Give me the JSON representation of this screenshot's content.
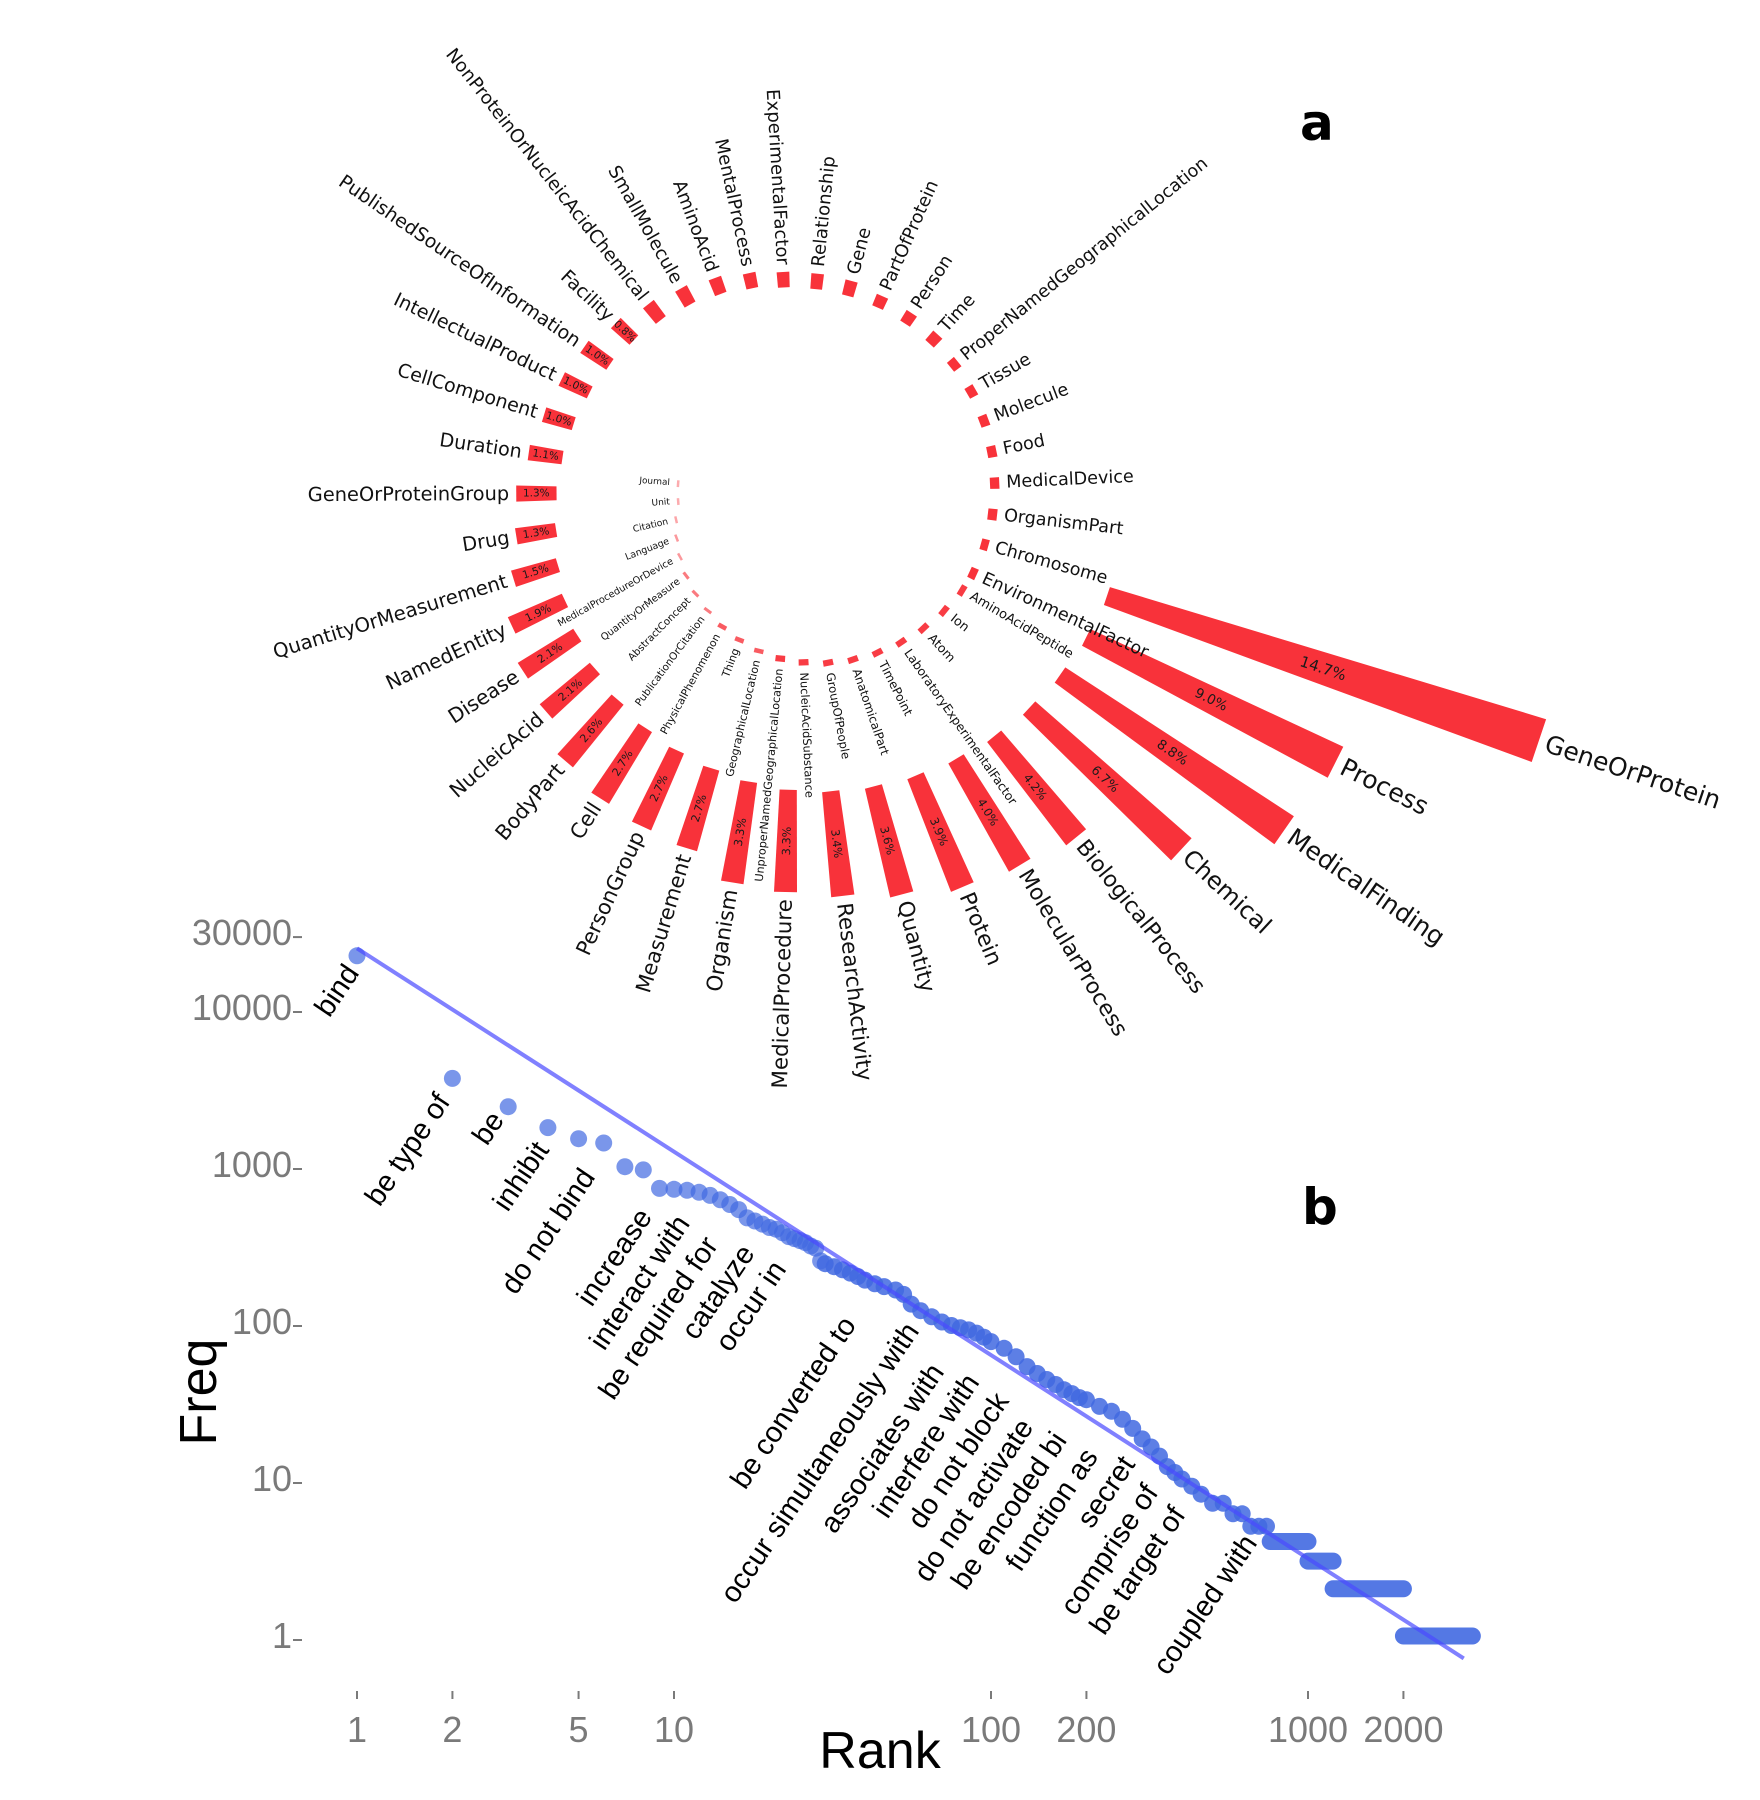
{
  "panel_labels": {
    "a": "a",
    "b": "b"
  },
  "colors": {
    "bar": "#f8323a",
    "points": "#4169e1",
    "fit_line": "#4a4aff",
    "tick_text": "#7a7a7a"
  },
  "chart_data": [
    {
      "type": "bar",
      "layout": "circular-spiral",
      "unit": "%",
      "categories": [
        {
          "name": "GeneOrProtein",
          "value": 14.7,
          "label": "14.7%"
        },
        {
          "name": "Process",
          "value": 9.0,
          "label": "9.0%"
        },
        {
          "name": "MedicalFinding",
          "value": 8.8,
          "label": "8.8%"
        },
        {
          "name": "Chemical",
          "value": 6.7,
          "label": "6.7%"
        },
        {
          "name": "BiologicalProcess",
          "value": 4.2,
          "label": "4.2%"
        },
        {
          "name": "MolecularProcess",
          "value": 4.0,
          "label": "4.0%"
        },
        {
          "name": "Protein",
          "value": 3.9,
          "label": "3.9%"
        },
        {
          "name": "Quantity",
          "value": 3.6,
          "label": "3.6%"
        },
        {
          "name": "ResearchActivity",
          "value": 3.4,
          "label": "3.4%"
        },
        {
          "name": "MedicalProcedure",
          "value": 3.3,
          "label": "3.3%"
        },
        {
          "name": "Organism",
          "value": 3.3,
          "label": "3.3%"
        },
        {
          "name": "Measurement",
          "value": 2.7,
          "label": "2.7%"
        },
        {
          "name": "PersonGroup",
          "value": 2.7,
          "label": "2.7%"
        },
        {
          "name": "Cell",
          "value": 2.7,
          "label": "2.7%"
        },
        {
          "name": "BodyPart",
          "value": 2.6,
          "label": "2.6%"
        },
        {
          "name": "NucleicAcid",
          "value": 2.1,
          "label": "2.1%"
        },
        {
          "name": "Disease",
          "value": 2.1,
          "label": "2.1%"
        },
        {
          "name": "NamedEntity",
          "value": 1.9,
          "label": "1.9%"
        },
        {
          "name": "QuantityOrMeasurement",
          "value": 1.5,
          "label": "1.5%"
        },
        {
          "name": "Drug",
          "value": 1.3,
          "label": "1.3%"
        },
        {
          "name": "GeneOrProteinGroup",
          "value": 1.3,
          "label": "1.3%"
        },
        {
          "name": "Duration",
          "value": 1.1,
          "label": "1.1%"
        },
        {
          "name": "CellComponent",
          "value": 1.0,
          "label": "1.0%"
        },
        {
          "name": "IntellectualProduct",
          "value": 1.0,
          "label": "1.0%"
        },
        {
          "name": "PublishedSourceOfInformation",
          "value": 1.0,
          "label": "1.0%"
        },
        {
          "name": "Facility",
          "value": 0.8,
          "label": "0.8%"
        },
        {
          "name": "NonProteinOrNucleicAcidChemical",
          "value": 0.65
        },
        {
          "name": "SmallMolecule",
          "value": 0.6
        },
        {
          "name": "AminoAcid",
          "value": 0.55
        },
        {
          "name": "MentalProcess",
          "value": 0.5
        },
        {
          "name": "ExperimentalFactor",
          "value": 0.5
        },
        {
          "name": "Relationship",
          "value": 0.5
        },
        {
          "name": "Gene",
          "value": 0.5
        },
        {
          "name": "PartOfProtein",
          "value": 0.4
        },
        {
          "name": "Person",
          "value": 0.4
        },
        {
          "name": "Time",
          "value": 0.4
        },
        {
          "name": "ProperNamedGeographicalLocation",
          "value": 0.3
        },
        {
          "name": "Tissue",
          "value": 0.3
        },
        {
          "name": "Molecule",
          "value": 0.3
        },
        {
          "name": "Food",
          "value": 0.3
        },
        {
          "name": "MedicalDevice",
          "value": 0.3
        },
        {
          "name": "OrganismPart",
          "value": 0.3
        },
        {
          "name": "Chromosome",
          "value": 0.25
        },
        {
          "name": "EnvironmentalFactor",
          "value": 0.25
        },
        {
          "name": "AminoAcidPeptide",
          "value": 0.2
        },
        {
          "name": "Ion",
          "value": 0.2
        },
        {
          "name": "Atom",
          "value": 0.2
        },
        {
          "name": "LaboratoryExperimentalFactor",
          "value": 0.2
        },
        {
          "name": "TimePoint",
          "value": 0.2
        },
        {
          "name": "AnatomicalPart",
          "value": 0.2
        },
        {
          "name": "GroupOfPeople",
          "value": 0.2
        },
        {
          "name": "NucleicAcidSubstance",
          "value": 0.2
        },
        {
          "name": "UnproperNamedGeographicalLocation",
          "value": 0.2
        },
        {
          "name": "GeographicalLocation",
          "value": 0.15
        },
        {
          "name": "Thing",
          "value": 0.15
        },
        {
          "name": "PhysicalPhenomenon",
          "value": 0.15
        },
        {
          "name": "PublicationOrCitation",
          "value": 0.1
        },
        {
          "name": "AbstractConcept",
          "value": 0.1
        },
        {
          "name": "QuantityOrMeasure",
          "value": 0.1
        },
        {
          "name": "MedicalProcedureOrDevice",
          "value": 0.05
        },
        {
          "name": "Language",
          "value": 0.05
        },
        {
          "name": "Citation",
          "value": 0.03
        },
        {
          "name": "Unit",
          "value": 0.02
        },
        {
          "name": "Journal",
          "value": 0.02
        }
      ]
    },
    {
      "type": "scatter",
      "xlabel": "Rank",
      "ylabel": "Freq",
      "x_scale": "log",
      "y_scale": "log",
      "xlim": [
        1,
        3300
      ],
      "ylim": [
        1,
        30000
      ],
      "x_ticks": [
        "1",
        "2",
        "5",
        "10",
        "100",
        "200",
        "1000",
        "2000"
      ],
      "x_tick_values": [
        1,
        2,
        5,
        10,
        100,
        200,
        1000,
        2000
      ],
      "y_ticks": [
        "30000",
        "10000",
        "1000",
        "100",
        "10",
        "1"
      ],
      "y_tick_values": [
        30000,
        10000,
        1000,
        100,
        10,
        1
      ],
      "grid": false,
      "points": [
        [
          1,
          21500
        ],
        [
          2,
          3560
        ],
        [
          3,
          2350
        ],
        [
          4,
          1730
        ],
        [
          5,
          1470
        ],
        [
          6,
          1380
        ],
        [
          7,
          975
        ],
        [
          8,
          930
        ],
        [
          9,
          710
        ],
        [
          10,
          700
        ],
        [
          11,
          690
        ],
        [
          12,
          670
        ],
        [
          13,
          640
        ],
        [
          14,
          600
        ],
        [
          15,
          560
        ],
        [
          16,
          520
        ],
        [
          17,
          460
        ],
        [
          18,
          440
        ],
        [
          19,
          420
        ],
        [
          20,
          400
        ],
        [
          21,
          390
        ],
        [
          22,
          370
        ],
        [
          23,
          350
        ],
        [
          24,
          340
        ],
        [
          25,
          330
        ],
        [
          26,
          320
        ],
        [
          27,
          305
        ],
        [
          28,
          295
        ],
        [
          29,
          245
        ],
        [
          30,
          235
        ],
        [
          32,
          225
        ],
        [
          34,
          215
        ],
        [
          36,
          205
        ],
        [
          38,
          195
        ],
        [
          40,
          185
        ],
        [
          43,
          175
        ],
        [
          46,
          168
        ],
        [
          50,
          160
        ],
        [
          53,
          150
        ],
        [
          56,
          130
        ],
        [
          60,
          118
        ],
        [
          65,
          108
        ],
        [
          70,
          100
        ],
        [
          75,
          95
        ],
        [
          80,
          92
        ],
        [
          85,
          89
        ],
        [
          90,
          85
        ],
        [
          95,
          80
        ],
        [
          100,
          75
        ],
        [
          110,
          68
        ],
        [
          120,
          60
        ],
        [
          130,
          52
        ],
        [
          140,
          47
        ],
        [
          150,
          43
        ],
        [
          160,
          40
        ],
        [
          170,
          37
        ],
        [
          180,
          35
        ],
        [
          190,
          33
        ],
        [
          200,
          32
        ],
        [
          220,
          29
        ],
        [
          240,
          27
        ],
        [
          260,
          24
        ],
        [
          280,
          21
        ],
        [
          300,
          18
        ],
        [
          320,
          16
        ],
        [
          340,
          14
        ],
        [
          360,
          12
        ],
        [
          380,
          11
        ],
        [
          400,
          10
        ],
        [
          430,
          9
        ],
        [
          460,
          8
        ],
        [
          500,
          7
        ],
        [
          540,
          7
        ],
        [
          580,
          6
        ],
        [
          620,
          6
        ],
        [
          660,
          5
        ],
        [
          700,
          5
        ],
        [
          740,
          5
        ]
      ],
      "plateaus": [
        {
          "freq": 4,
          "rank_from": 760,
          "rank_to": 1000
        },
        {
          "freq": 3,
          "rank_from": 1000,
          "rank_to": 1200
        },
        {
          "freq": 2,
          "rank_from": 1200,
          "rank_to": 2000
        },
        {
          "freq": 1,
          "rank_from": 2000,
          "rank_to": 3300
        }
      ],
      "fit_line": {
        "from": [
          1,
          24000
        ],
        "to": [
          3100,
          0.72
        ]
      },
      "point_labels": [
        {
          "text": "bind",
          "rank": 1
        },
        {
          "text": "be type of",
          "rank": 2
        },
        {
          "text": "be",
          "rank": 3
        },
        {
          "text": "inhibit",
          "rank": 4
        },
        {
          "text": "do not bind",
          "rank": 5
        },
        {
          "text": "increase",
          "rank": 9
        },
        {
          "text": "interact with",
          "rank": 11
        },
        {
          "text": "be required for",
          "rank": 14
        },
        {
          "text": "catalyze",
          "rank": 17
        },
        {
          "text": "occur in",
          "rank": 21
        },
        {
          "text": "be converted to",
          "rank": 36
        },
        {
          "text": "occur simultaneously with",
          "rank": 57
        },
        {
          "text": "associates with",
          "rank": 73
        },
        {
          "text": "interfere with",
          "rank": 94
        },
        {
          "text": "do not block",
          "rank": 116
        },
        {
          "text": "do not activate",
          "rank": 130
        },
        {
          "text": "be encoded bi",
          "rank": 160
        },
        {
          "text": "function as",
          "rank": 190
        },
        {
          "text": "secret",
          "rank": 245
        },
        {
          "text": "comprise of",
          "rank": 275
        },
        {
          "text": "be target of",
          "rank": 380
        },
        {
          "text": "coupled with",
          "rank": 700
        }
      ]
    }
  ]
}
